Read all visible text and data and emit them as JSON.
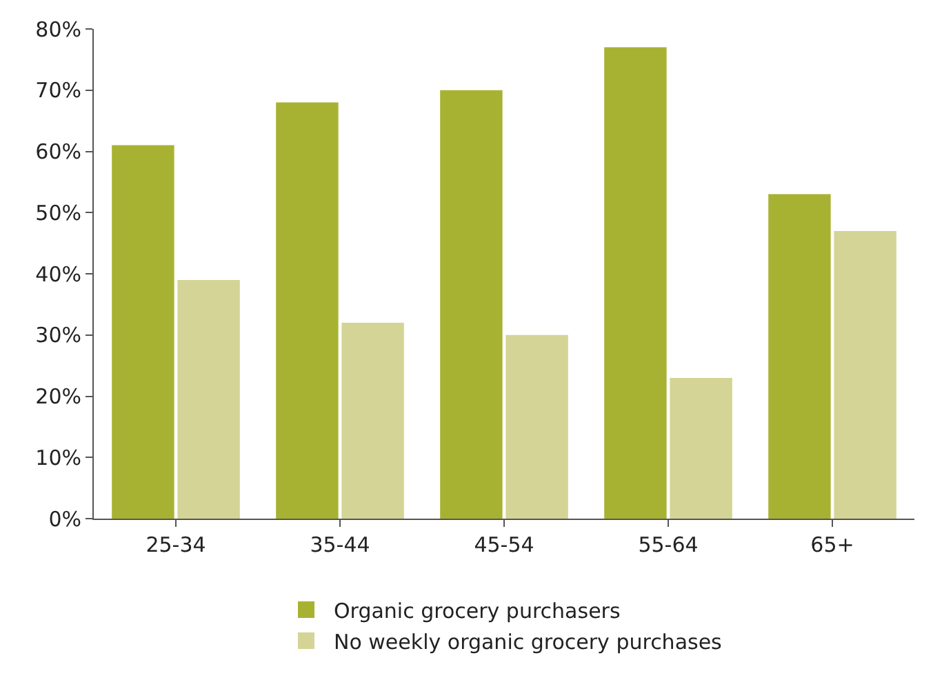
{
  "chart_data": {
    "type": "bar",
    "categories": [
      "25-34",
      "35-44",
      "45-54",
      "55-64",
      "65+"
    ],
    "series": [
      {
        "name": "Organic grocery purchasers",
        "color": "#a8b232",
        "values": [
          61,
          68,
          70,
          77,
          53
        ]
      },
      {
        "name": "No weekly organic grocery purchases",
        "color": "#d4d496",
        "values": [
          39,
          32,
          30,
          23,
          47
        ]
      }
    ],
    "ylim": [
      0,
      80
    ],
    "yticks": [
      {
        "value": 0,
        "label": "0%"
      },
      {
        "value": 10,
        "label": "10%"
      },
      {
        "value": 20,
        "label": "20%"
      },
      {
        "value": 30,
        "label": "30%"
      },
      {
        "value": 40,
        "label": "40%"
      },
      {
        "value": 50,
        "label": "50%"
      },
      {
        "value": 60,
        "label": "60%"
      },
      {
        "value": 70,
        "label": "70%"
      },
      {
        "value": 80,
        "label": "80%"
      }
    ],
    "grid": false,
    "legend": "bottom"
  }
}
